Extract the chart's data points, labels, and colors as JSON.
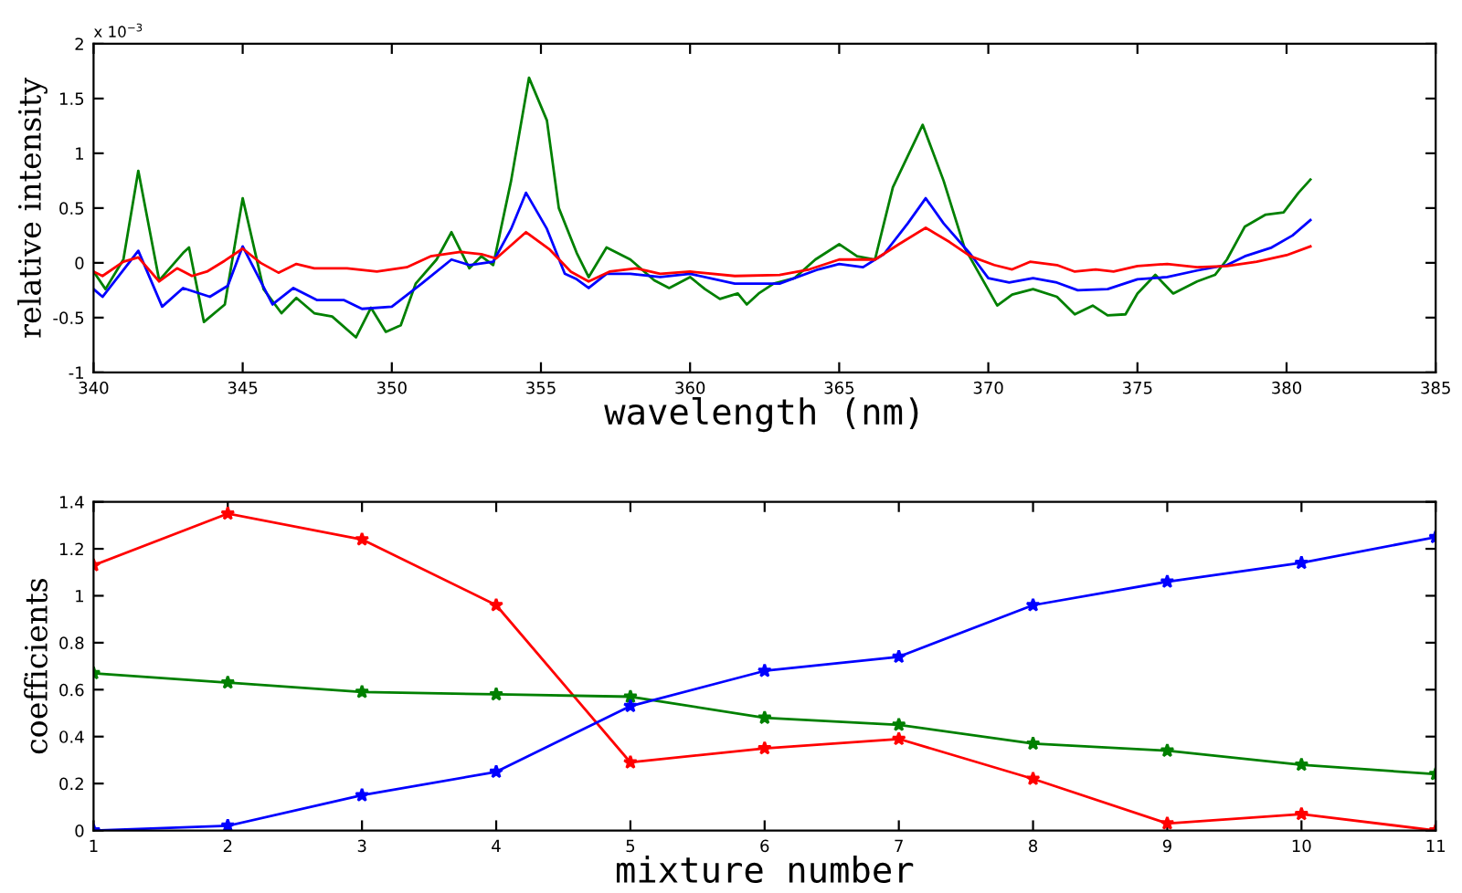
{
  "chart_data": [
    {
      "type": "line",
      "xlabel": "wavelength (nm)",
      "ylabel": "relative intensity",
      "annotations": [
        "x 10$^{−3}$"
      ],
      "xlim": [
        340,
        385
      ],
      "xticks": [
        340,
        345,
        350,
        355,
        360,
        365,
        370,
        375,
        380,
        385
      ],
      "ylim": [
        -1,
        2
      ],
      "yticks": [
        -1,
        -0.5,
        0,
        0.5,
        1,
        1.5,
        2
      ],
      "grid": false,
      "legend": false,
      "marker": "none",
      "line_style": "solid",
      "series": [
        {
          "color": "#008000",
          "x": [
            340,
            340.4,
            341.0,
            341.5,
            342.2,
            343.0,
            343.2,
            343.7,
            344.4,
            345.0,
            345.7,
            346.3,
            346.8,
            347.4,
            348.0,
            348.8,
            349.3,
            349.8,
            350.3,
            350.8,
            351.5,
            352.0,
            352.6,
            353.0,
            353.4,
            354.0,
            354.6,
            355.2,
            355.6,
            356.2,
            356.6,
            357.2,
            358.0,
            358.8,
            359.3,
            360.0,
            360.5,
            361.0,
            361.6,
            361.9,
            362.3,
            362.8,
            363.5,
            364.2,
            365.0,
            365.6,
            366.2,
            366.8,
            367.8,
            368.5,
            369.2,
            370.3,
            370.8,
            371.5,
            372.3,
            372.9,
            373.5,
            374.0,
            374.6,
            375.0,
            375.6,
            376.2,
            377.0,
            377.6,
            378.0,
            378.6,
            379.3,
            379.9,
            380.4,
            380.8
          ],
          "values": [
            -0.08,
            -0.24,
            0.03,
            0.84,
            -0.16,
            0.09,
            0.14,
            -0.54,
            -0.38,
            0.59,
            -0.24,
            -0.46,
            -0.32,
            -0.46,
            -0.49,
            -0.68,
            -0.41,
            -0.63,
            -0.57,
            -0.19,
            0.03,
            0.28,
            -0.05,
            0.06,
            -0.02,
            0.75,
            1.69,
            1.3,
            0.5,
            0.09,
            -0.13,
            0.14,
            0.03,
            -0.16,
            -0.23,
            -0.13,
            -0.24,
            -0.33,
            -0.28,
            -0.38,
            -0.28,
            -0.19,
            -0.14,
            0.03,
            0.17,
            0.06,
            0.03,
            0.69,
            1.26,
            0.75,
            0.14,
            -0.39,
            -0.29,
            -0.24,
            -0.31,
            -0.47,
            -0.39,
            -0.48,
            -0.47,
            -0.28,
            -0.11,
            -0.28,
            -0.17,
            -0.11,
            0.03,
            0.33,
            0.44,
            0.46,
            0.64,
            0.76
          ]
        },
        {
          "color": "#0000ff",
          "x": [
            340,
            340.3,
            341.5,
            342.3,
            343.0,
            343.9,
            344.5,
            345.0,
            346.0,
            346.7,
            347.5,
            348.4,
            349.0,
            350.0,
            351.0,
            352.0,
            352.6,
            353.4,
            354.0,
            354.5,
            355.2,
            355.8,
            356.2,
            356.6,
            357.2,
            358.0,
            359.0,
            360.0,
            361.5,
            363.0,
            364.3,
            365.0,
            365.8,
            366.5,
            367.3,
            367.9,
            368.5,
            369.4,
            370.0,
            370.7,
            371.5,
            372.3,
            373.0,
            374.0,
            375.0,
            376.0,
            377.0,
            378.0,
            378.6,
            379.5,
            380.2,
            380.8
          ],
          "values": [
            -0.24,
            -0.31,
            0.11,
            -0.4,
            -0.23,
            -0.31,
            -0.21,
            0.15,
            -0.38,
            -0.23,
            -0.34,
            -0.34,
            -0.42,
            -0.4,
            -0.19,
            0.03,
            -0.02,
            0.01,
            0.31,
            0.64,
            0.31,
            -0.1,
            -0.15,
            -0.23,
            -0.1,
            -0.1,
            -0.13,
            -0.1,
            -0.19,
            -0.19,
            -0.06,
            -0.01,
            -0.04,
            0.08,
            0.36,
            0.59,
            0.36,
            0.08,
            -0.14,
            -0.18,
            -0.14,
            -0.18,
            -0.25,
            -0.24,
            -0.15,
            -0.13,
            -0.07,
            -0.02,
            0.06,
            0.14,
            0.25,
            0.39
          ]
        },
        {
          "color": "#ff0000",
          "x": [
            340,
            340.3,
            341.0,
            341.5,
            342.2,
            342.8,
            343.3,
            343.8,
            344.4,
            345.0,
            345.6,
            346.2,
            346.8,
            347.4,
            348.5,
            349.5,
            350.5,
            351.3,
            352.3,
            353.0,
            353.5,
            354.5,
            355.3,
            356.0,
            356.6,
            357.3,
            358.2,
            359.0,
            360.0,
            361.5,
            363.0,
            364.0,
            365.0,
            366.2,
            367.0,
            367.9,
            368.7,
            369.4,
            370.2,
            370.8,
            371.4,
            372.3,
            372.9,
            373.6,
            374.2,
            375.0,
            376.0,
            377.0,
            378.0,
            379.0,
            380.0,
            380.8
          ],
          "values": [
            -0.08,
            -0.12,
            0.01,
            0.05,
            -0.17,
            -0.05,
            -0.12,
            -0.08,
            0.02,
            0.13,
            0.0,
            -0.09,
            -0.01,
            -0.05,
            -0.05,
            -0.08,
            -0.04,
            0.06,
            0.1,
            0.08,
            0.04,
            0.28,
            0.12,
            -0.08,
            -0.17,
            -0.08,
            -0.05,
            -0.1,
            -0.08,
            -0.12,
            -0.11,
            -0.06,
            0.03,
            0.03,
            0.17,
            0.32,
            0.19,
            0.06,
            -0.02,
            -0.06,
            0.01,
            -0.02,
            -0.08,
            -0.06,
            -0.08,
            -0.03,
            -0.01,
            -0.04,
            -0.03,
            0.01,
            0.07,
            0.15
          ]
        }
      ]
    },
    {
      "type": "line",
      "xlabel": "mixture number",
      "ylabel": "coefficients",
      "xlim": [
        1,
        11
      ],
      "xticks": [
        1,
        2,
        3,
        4,
        5,
        6,
        7,
        8,
        9,
        10,
        11
      ],
      "ylim": [
        0,
        1.4
      ],
      "yticks": [
        0,
        0.2,
        0.4,
        0.6,
        0.8,
        1,
        1.2,
        1.4
      ],
      "grid": false,
      "legend": false,
      "marker": "star",
      "line_style": "solid",
      "x": [
        1,
        2,
        3,
        4,
        5,
        6,
        7,
        8,
        9,
        10,
        11
      ],
      "series": [
        {
          "color": "#ff0000",
          "values": [
            1.13,
            1.35,
            1.24,
            0.96,
            0.29,
            0.35,
            0.39,
            0.22,
            0.03,
            0.07,
            0.0
          ]
        },
        {
          "color": "#008000",
          "values": [
            0.67,
            0.63,
            0.59,
            0.58,
            0.57,
            0.48,
            0.45,
            0.37,
            0.34,
            0.28,
            0.24
          ]
        },
        {
          "color": "#0000ff",
          "values": [
            0.0,
            0.02,
            0.15,
            0.25,
            0.53,
            0.68,
            0.74,
            0.96,
            1.06,
            1.14,
            1.25
          ]
        }
      ]
    }
  ]
}
